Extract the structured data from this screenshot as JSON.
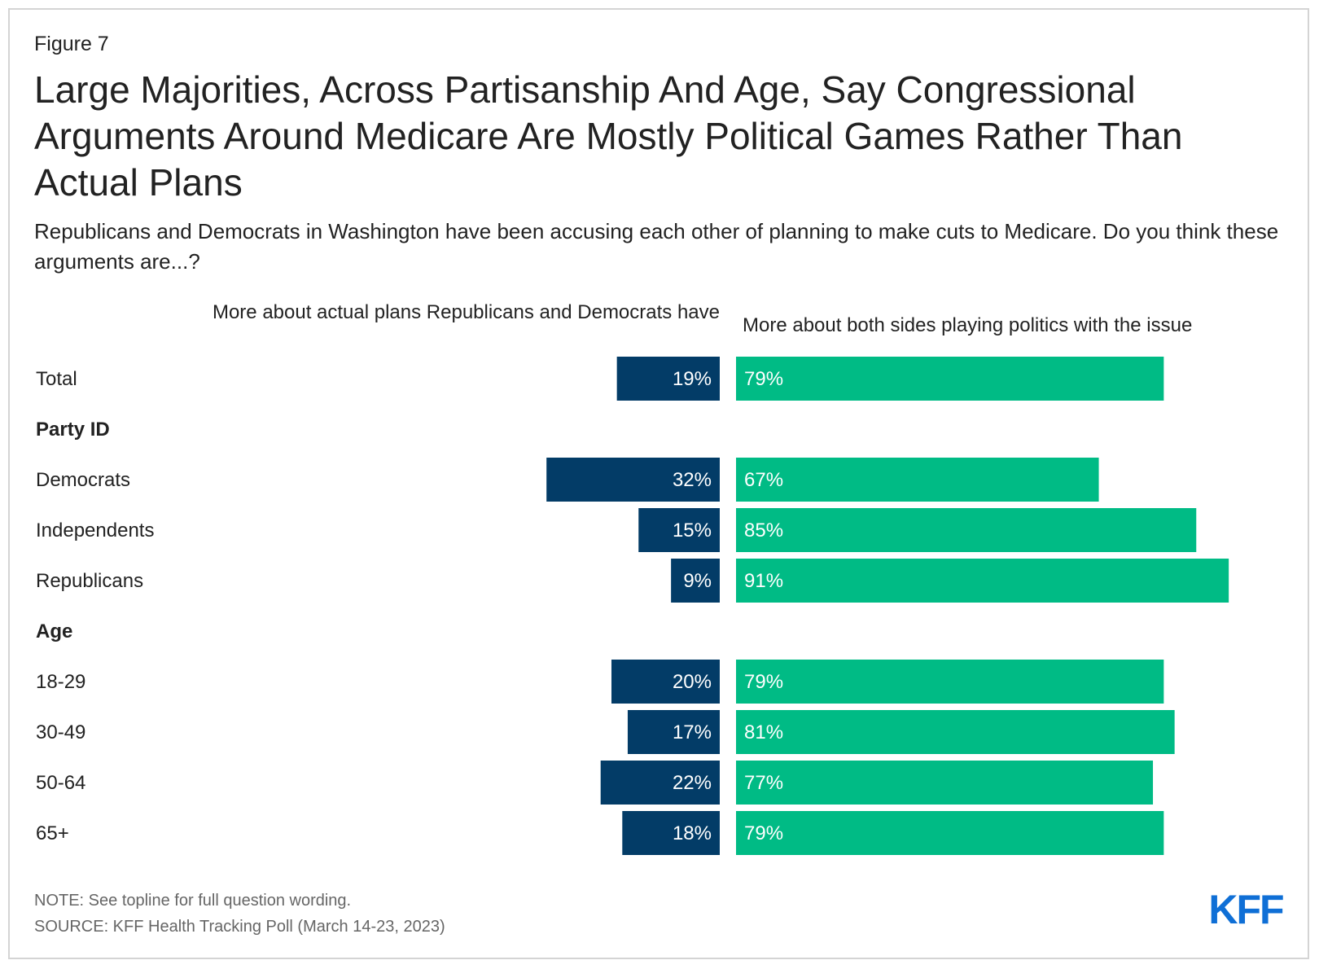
{
  "figure_label": "Figure 7",
  "title": "Large Majorities, Across Partisanship And Age, Say Congressional Arguments Around Medicare Are Mostly Political Games Rather Than Actual Plans",
  "subtitle": "Republicans and Democrats in Washington have been accusing each other of planning to make cuts to Medicare. Do you think these arguments are...?",
  "colors": {
    "left_series": "#033c67",
    "right_series": "#00bb85",
    "logo": "#0f6fd6"
  },
  "chart_data": {
    "type": "bar",
    "orientation": "horizontal-diverging",
    "rows": [
      {
        "label": "Total",
        "kind": "item"
      },
      {
        "label": "Party ID",
        "kind": "group"
      },
      {
        "label": "Democrats",
        "kind": "item"
      },
      {
        "label": "Independents",
        "kind": "item"
      },
      {
        "label": "Republicans",
        "kind": "item"
      },
      {
        "label": "Age",
        "kind": "group"
      },
      {
        "label": "18-29",
        "kind": "item"
      },
      {
        "label": "30-49",
        "kind": "item"
      },
      {
        "label": "50-64",
        "kind": "item"
      },
      {
        "label": "65+",
        "kind": "item"
      }
    ],
    "series": [
      {
        "name": "More about actual plans Republicans and Democrats have",
        "values": [
          19,
          null,
          32,
          15,
          9,
          null,
          20,
          17,
          22,
          18
        ]
      },
      {
        "name": "More about both sides playing politics with the issue",
        "values": [
          79,
          null,
          67,
          85,
          91,
          null,
          79,
          81,
          77,
          79
        ]
      }
    ],
    "value_suffix": "%",
    "grid": false
  },
  "footer": {
    "note": "NOTE: See topline for full question wording.",
    "source": "SOURCE: KFF Health Tracking Poll (March 14-23, 2023)"
  },
  "logo_text": "KFF"
}
